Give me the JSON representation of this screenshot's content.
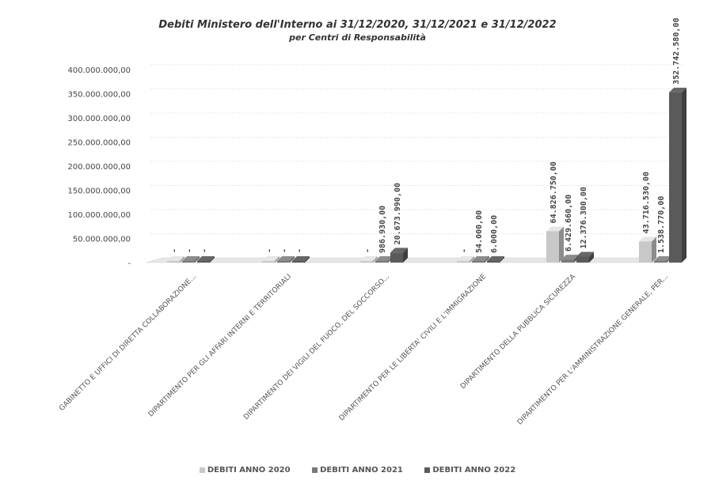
{
  "chart_data": {
    "type": "bar",
    "title": "Debiti Ministero dell'Interno ai 31/12/2020, 31/12/2021 e 31/12/2022",
    "subtitle": "per Centri di Responsabilità",
    "ylim": [
      0,
      400000000
    ],
    "y_ticks": [
      "-",
      "50.000.000,00",
      "100.000.000,00",
      "150.000.000,00",
      "200.000.000,00",
      "250.000.000,00",
      "300.000.000,00",
      "350.000.000,00",
      "400.000.000,00"
    ],
    "grid": true,
    "legend_position": "bottom",
    "categories": [
      "GABINETTO E UFFICI DI DIRETTA COLLABORAZIONE...",
      "DIPARTIMENTO PER GLI AFFARI INTERNI E TERRITORIALI",
      "DIPARTIMENTO DEI VIGILI DEL FUOCO, DEL SOCCORSO...",
      "DIPARTIMENTO PER LE LIBERTA' CIVILI E L'IMMIGRAZIONE",
      "DIPARTIMENTO DELLA PUBBLICA SICUREZZA",
      "DIPARTIMENTO PER L'AMMINISTRAZIONE GENERALE, PER..."
    ],
    "series": [
      {
        "name": "DEBITI ANNO 2020",
        "color": "#c8c8c8",
        "values": [
          0,
          0,
          0,
          0,
          64826750,
          43716530
        ],
        "labels": [
          "-",
          "-",
          "-",
          "-",
          "64.826.750,00",
          "43.716.530,00"
        ]
      },
      {
        "name": "DEBITI ANNO 2021",
        "color": "#7a7a7a",
        "values": [
          0,
          0,
          986930,
          54000,
          6429660,
          1538770
        ],
        "labels": [
          "-",
          "-",
          "986.930,00",
          "54.000,00",
          "6.429.660,00",
          "1.538.770,00"
        ]
      },
      {
        "name": "DEBITI ANNO 2022",
        "color": "#5a5a5a",
        "values": [
          0,
          0,
          20673990,
          6000,
          12376300,
          352742580
        ],
        "labels": [
          "-",
          "-",
          "20.673.990,00",
          "6.000,00",
          "12.376.300,00",
          "352.742.580,00"
        ]
      }
    ]
  }
}
